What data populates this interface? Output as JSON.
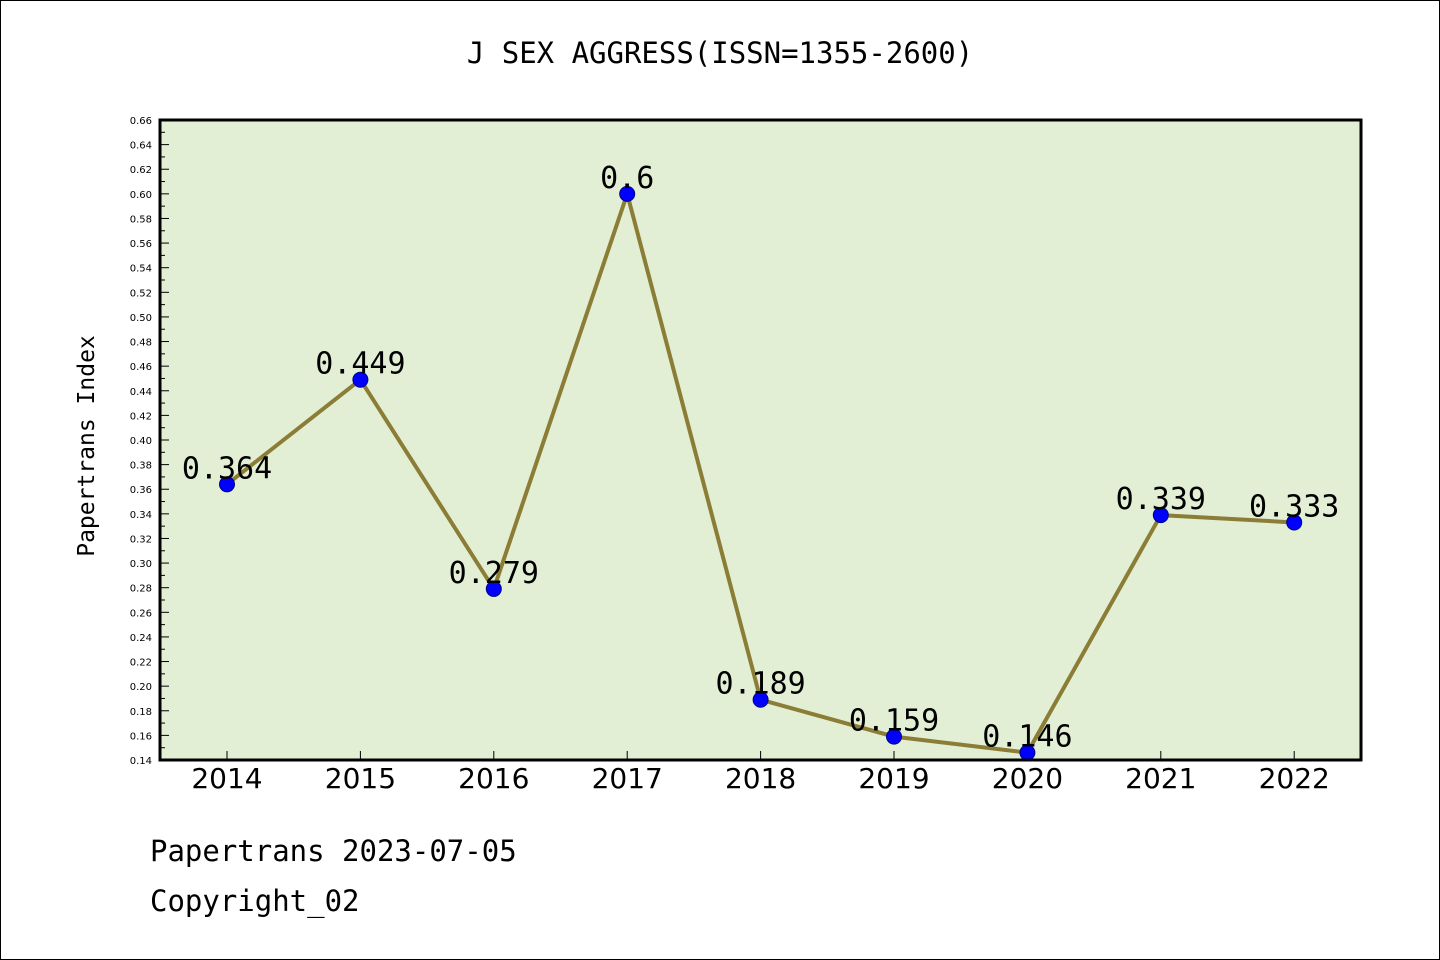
{
  "chart_data": {
    "type": "line",
    "title": "J SEX AGGRESS(ISSN=1355-2600)",
    "xlabel": "",
    "ylabel": "Papertrans Index",
    "categories": [
      "2014",
      "2015",
      "2016",
      "2017",
      "2018",
      "2019",
      "2020",
      "2021",
      "2022"
    ],
    "series": [
      {
        "values": [
          0.364,
          0.449,
          0.279,
          0.6,
          0.189,
          0.159,
          0.146,
          0.339,
          0.333
        ],
        "labels": [
          "0.364",
          "0.449",
          "0.279",
          "0.6",
          "0.189",
          "0.159",
          "0.146",
          "0.339",
          "0.333"
        ],
        "line_color": "#8b7d35",
        "marker_color": "#0000ff"
      }
    ],
    "ylim": [
      0.14,
      0.66
    ],
    "ytick_step": 0.02,
    "ytick_labels": [
      "0.14",
      "0.16",
      "0.18",
      "0.20",
      "0.22",
      "0.24",
      "0.26",
      "0.28",
      "0.30",
      "0.32",
      "0.34",
      "0.36",
      "0.38",
      "0.40",
      "0.42",
      "0.44",
      "0.46",
      "0.48",
      "0.50",
      "0.52",
      "0.54",
      "0.56",
      "0.58",
      "0.60",
      "0.62",
      "0.64",
      "0.66"
    ],
    "plot_background": "#e2efd5",
    "grid": false,
    "legend": "none"
  },
  "footer": {
    "line1": "Papertrans 2023-07-05",
    "line2": "Copyright_02"
  }
}
